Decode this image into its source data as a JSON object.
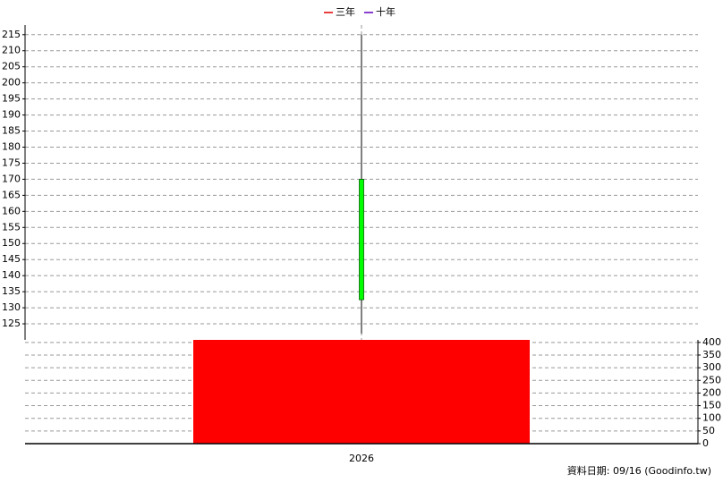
{
  "chart_data": [
    {
      "type": "candlestick",
      "legend": [
        {
          "name": "三年",
          "color": "#e00000"
        },
        {
          "name": "十年",
          "color": "#6000c0"
        }
      ],
      "categories": [
        "2026"
      ],
      "open": [
        170
      ],
      "close": [
        132.5
      ],
      "high": [
        215
      ],
      "low": [
        122
      ],
      "color": "#00ff00",
      "ylim": [
        120,
        218
      ],
      "yticks": [
        125,
        130,
        135,
        140,
        145,
        150,
        155,
        160,
        165,
        170,
        175,
        180,
        185,
        190,
        195,
        200,
        205,
        210,
        215
      ],
      "grid": true
    },
    {
      "type": "bar",
      "categories": [
        "2026"
      ],
      "values": [
        410
      ],
      "color": "#ff0000",
      "ylim": [
        0,
        410
      ],
      "yticks": [
        0,
        50,
        100,
        150,
        200,
        250,
        300,
        350,
        400
      ],
      "grid": true,
      "note": "資料日期: 09/16  (Goodinfo.tw)"
    }
  ]
}
